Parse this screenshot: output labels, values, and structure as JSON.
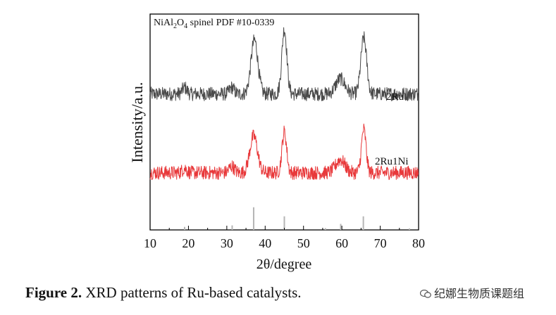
{
  "chart_data": {
    "type": "line",
    "legend_box": {
      "prefix": "NiAl",
      "sub1": "2",
      "mid": "O",
      "sub2": "4",
      "suffix": " spinel PDF #10-0339"
    },
    "xlabel": "2θ/degree",
    "ylabel": "Intensity/a.u.",
    "xlim": [
      10,
      80
    ],
    "xticks": [
      "10",
      "20",
      "30",
      "40",
      "50",
      "60",
      "70",
      "80"
    ],
    "yticks_shown": false,
    "series": [
      {
        "name": "2Ru",
        "color": "#4a4a4a",
        "baseline": 0.63,
        "noise": 0.032,
        "peaks": [
          {
            "x": 19.0,
            "h": 0.03,
            "w": 0.6
          },
          {
            "x": 31.3,
            "h": 0.03,
            "w": 0.6
          },
          {
            "x": 37.2,
            "h": 0.25,
            "w": 0.9
          },
          {
            "x": 45.0,
            "h": 0.3,
            "w": 0.65
          },
          {
            "x": 59.6,
            "h": 0.07,
            "w": 1.2
          },
          {
            "x": 65.7,
            "h": 0.26,
            "w": 0.75
          }
        ]
      },
      {
        "name": "2Ru1Ni",
        "color": "#e8383a",
        "baseline": 0.265,
        "noise": 0.032,
        "peaks": [
          {
            "x": 19.0,
            "h": 0.02,
            "w": 0.6
          },
          {
            "x": 31.3,
            "h": 0.03,
            "w": 0.7
          },
          {
            "x": 37.0,
            "h": 0.17,
            "w": 1.0
          },
          {
            "x": 45.0,
            "h": 0.19,
            "w": 0.6
          },
          {
            "x": 59.6,
            "h": 0.06,
            "w": 1.2
          },
          {
            "x": 65.7,
            "h": 0.2,
            "w": 0.6
          }
        ]
      }
    ],
    "reference": {
      "name": "NiAl2O4 spinel PDF #10-0339",
      "color": "#b5b5b5",
      "lines": [
        {
          "x": 19.0,
          "i": 0.1
        },
        {
          "x": 31.4,
          "i": 0.15
        },
        {
          "x": 37.0,
          "i": 0.75
        },
        {
          "x": 45.0,
          "i": 0.45
        },
        {
          "x": 55.7,
          "i": 0.06
        },
        {
          "x": 59.7,
          "i": 0.2
        },
        {
          "x": 65.6,
          "i": 0.45
        },
        {
          "x": 77.6,
          "i": 0.05
        }
      ]
    }
  },
  "caption": {
    "label": "Figure 2.",
    "text": " XRD patterns of Ru-based catalysts."
  },
  "watermark": {
    "text": "纪娜生物质课题组"
  }
}
